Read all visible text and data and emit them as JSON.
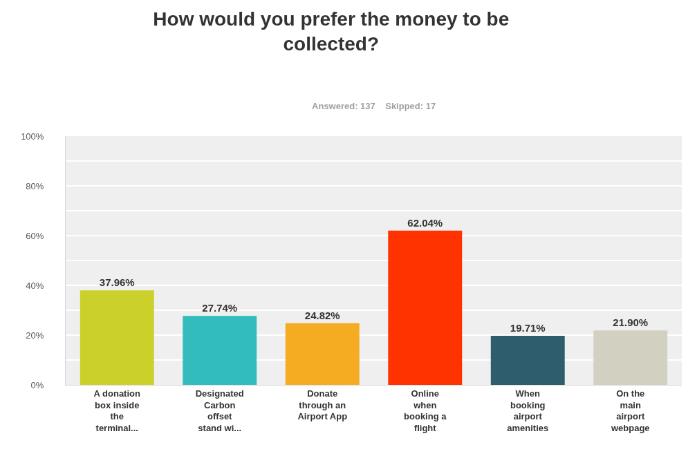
{
  "chart_data": {
    "type": "bar",
    "title": "How would you prefer the money to be collected?",
    "subtitle": "Answered: 137    Skipped: 17",
    "categories": [
      "A donation box inside the terminal...",
      "Designated Carbon offset stand wi...",
      "Donate through an Airport App",
      "Online when booking a flight",
      "When booking airport amenities",
      "On the main airport webpage"
    ],
    "values": [
      37.96,
      27.74,
      24.82,
      62.04,
      19.71,
      21.9
    ],
    "value_labels": [
      "37.96%",
      "27.74%",
      "24.82%",
      "62.04%",
      "19.71%",
      "21.90%"
    ],
    "colors": [
      "#cbd12a",
      "#33bcbd",
      "#f5ab22",
      "#ff3300",
      "#2e5e6e",
      "#d1d0c1"
    ],
    "ylim": [
      0,
      100
    ],
    "yticks": [
      {
        "value": 0,
        "label": "0%"
      },
      {
        "value": 10,
        "label": null
      },
      {
        "value": 20,
        "label": "20%"
      },
      {
        "value": 30,
        "label": null
      },
      {
        "value": 40,
        "label": "40%"
      },
      {
        "value": 50,
        "label": null
      },
      {
        "value": 60,
        "label": "60%"
      },
      {
        "value": 70,
        "label": null
      },
      {
        "value": 80,
        "label": "80%"
      },
      {
        "value": 90,
        "label": null
      },
      {
        "value": 100,
        "label": "100%"
      }
    ],
    "grid": true
  }
}
